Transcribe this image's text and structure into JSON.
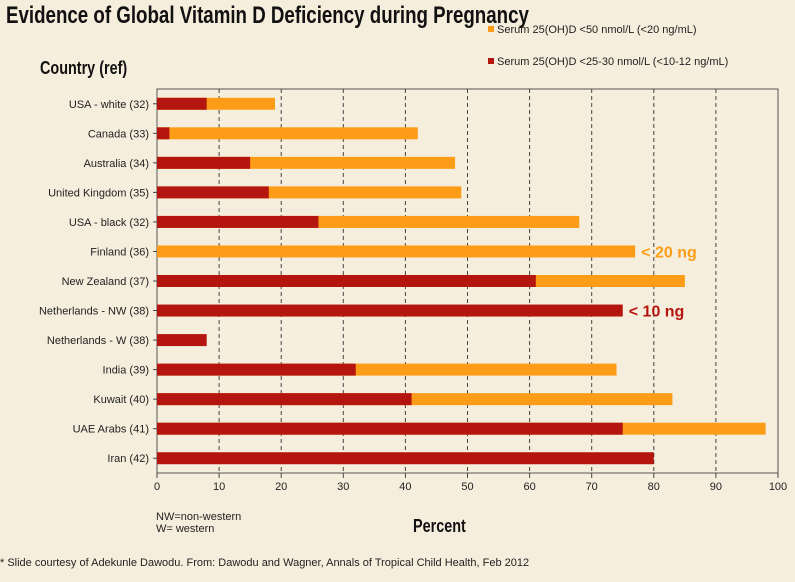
{
  "title": "Evidence of Global Vitamin D Deficiency during Pregnancy",
  "legend": [
    {
      "label": "Serum 25(OH)D <50 nmol/L (<20 ng/mL)",
      "color": "#fd9d17"
    },
    {
      "label": "Serum 25(OH)D <25-30 nmol/L (<10-12 ng/mL)",
      "color": "#b5150f"
    }
  ],
  "notes": [
    "NW=non-western",
    "W= western"
  ],
  "footer": "* Slide courtesy of Adekunle Dawodu. From: Dawodu and Wagner, Annals of Tropical Child Health, Feb 2012",
  "chart_data": {
    "type": "bar",
    "orientation": "horizontal",
    "ylabel": "Country (ref)",
    "xlabel": "Percent",
    "xlim": [
      0,
      100
    ],
    "xticks": [
      0,
      10,
      20,
      30,
      40,
      50,
      60,
      70,
      80,
      90,
      100
    ],
    "grid": "vertical dashed",
    "legend_position": "top-right",
    "categories": [
      "USA - white (32)",
      "Canada (33)",
      "Australia (34)",
      "United Kingdom (35)",
      "USA - black (32)",
      "Finland (36)",
      "New Zealand (37)",
      "Netherlands - NW (38)",
      "Netherlands - W (38)",
      "India (39)",
      "Kuwait (40)",
      "UAE Arabs (41)",
      "Iran (42)"
    ],
    "series": [
      {
        "name": "Serum 25(OH)D <50 nmol/L (<20 ng/mL)",
        "color": "#fd9d17",
        "values": [
          19,
          42,
          48,
          49,
          68,
          77,
          85,
          null,
          null,
          74,
          83,
          98,
          null
        ]
      },
      {
        "name": "Serum 25(OH)D <25-30 nmol/L (<10-12 ng/mL)",
        "color": "#b5150f",
        "values": [
          8,
          2,
          15,
          18,
          26,
          null,
          61,
          75,
          8,
          32,
          41,
          75,
          80
        ]
      }
    ],
    "annotations": [
      {
        "text": "< 20 ng",
        "category": "Finland (36)",
        "color": "#fd9d17"
      },
      {
        "text": "< 10 ng",
        "category": "Netherlands - NW (38)",
        "color": "#b5150f"
      }
    ]
  }
}
